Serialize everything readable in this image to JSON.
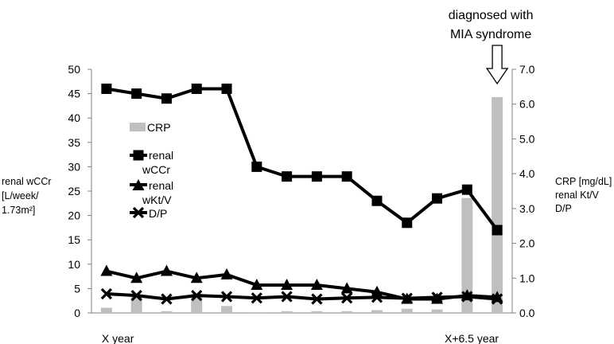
{
  "chart_data": {
    "type": "bar-line combo",
    "x": [
      0,
      1,
      2,
      3,
      4,
      5,
      6,
      7,
      8,
      9,
      10,
      11,
      12,
      13
    ],
    "x_start_label": "X year",
    "x_end_label": "X+6.5 year",
    "left_axis": {
      "label_lines": [
        "renal wCCr",
        "[L/week/",
        "1.73m²]"
      ],
      "ylim": [
        0,
        50
      ],
      "ticks": [
        "0",
        "5",
        "10",
        "15",
        "20",
        "25",
        "30",
        "35",
        "40",
        "45",
        "50"
      ]
    },
    "right_axis": {
      "label_lines": [
        "CRP [mg/dL]",
        "renal Kt/V",
        "D/P"
      ],
      "ylim": [
        0,
        7
      ],
      "ticks": [
        "0.0",
        "1.0",
        "2.0",
        "3.0",
        "4.0",
        "5.0",
        "6.0",
        "7.0"
      ]
    },
    "series": [
      {
        "name": "CRP",
        "kind": "bar",
        "axis": "right",
        "color": "#bfbfbf",
        "values": [
          0.15,
          0.5,
          0.05,
          0.55,
          0.2,
          0.02,
          0.05,
          0.05,
          0.05,
          0.08,
          0.12,
          0.1,
          3.3,
          6.2
        ]
      },
      {
        "name": "renal wCCr",
        "kind": "line",
        "marker": "square",
        "axis": "left",
        "color": "#000000",
        "values": [
          46,
          45,
          44,
          46,
          46,
          30,
          28,
          28,
          28,
          23,
          18.5,
          23.5,
          25.3,
          17
        ]
      },
      {
        "name": "renal wKt/V",
        "kind": "line",
        "marker": "triangle",
        "axis": "right",
        "color": "#000000",
        "values": [
          1.2,
          1.0,
          1.2,
          1.0,
          1.1,
          0.8,
          0.8,
          0.8,
          0.7,
          0.6,
          0.4,
          0.4,
          0.5,
          0.45
        ]
      },
      {
        "name": "D/P",
        "kind": "line",
        "marker": "x",
        "axis": "right",
        "color": "#000000",
        "values": [
          0.55,
          0.5,
          0.4,
          0.5,
          0.47,
          0.43,
          0.47,
          0.4,
          0.43,
          0.45,
          0.42,
          0.45,
          0.47,
          0.4
        ]
      }
    ],
    "legend": {
      "placement": "left-inside",
      "entries": [
        {
          "series": "CRP",
          "lines": [
            "CRP"
          ]
        },
        {
          "series": "renal wCCr",
          "lines": [
            "renal",
            "wCCr"
          ]
        },
        {
          "series": "renal wKt/V",
          "lines": [
            "renal",
            "wKt/V"
          ]
        },
        {
          "series": "D/P",
          "lines": [
            "D/P"
          ]
        }
      ]
    },
    "annotation": {
      "lines": [
        "diagnosed with",
        "MIA syndrome"
      ],
      "target_index": 13
    },
    "grid": false
  }
}
